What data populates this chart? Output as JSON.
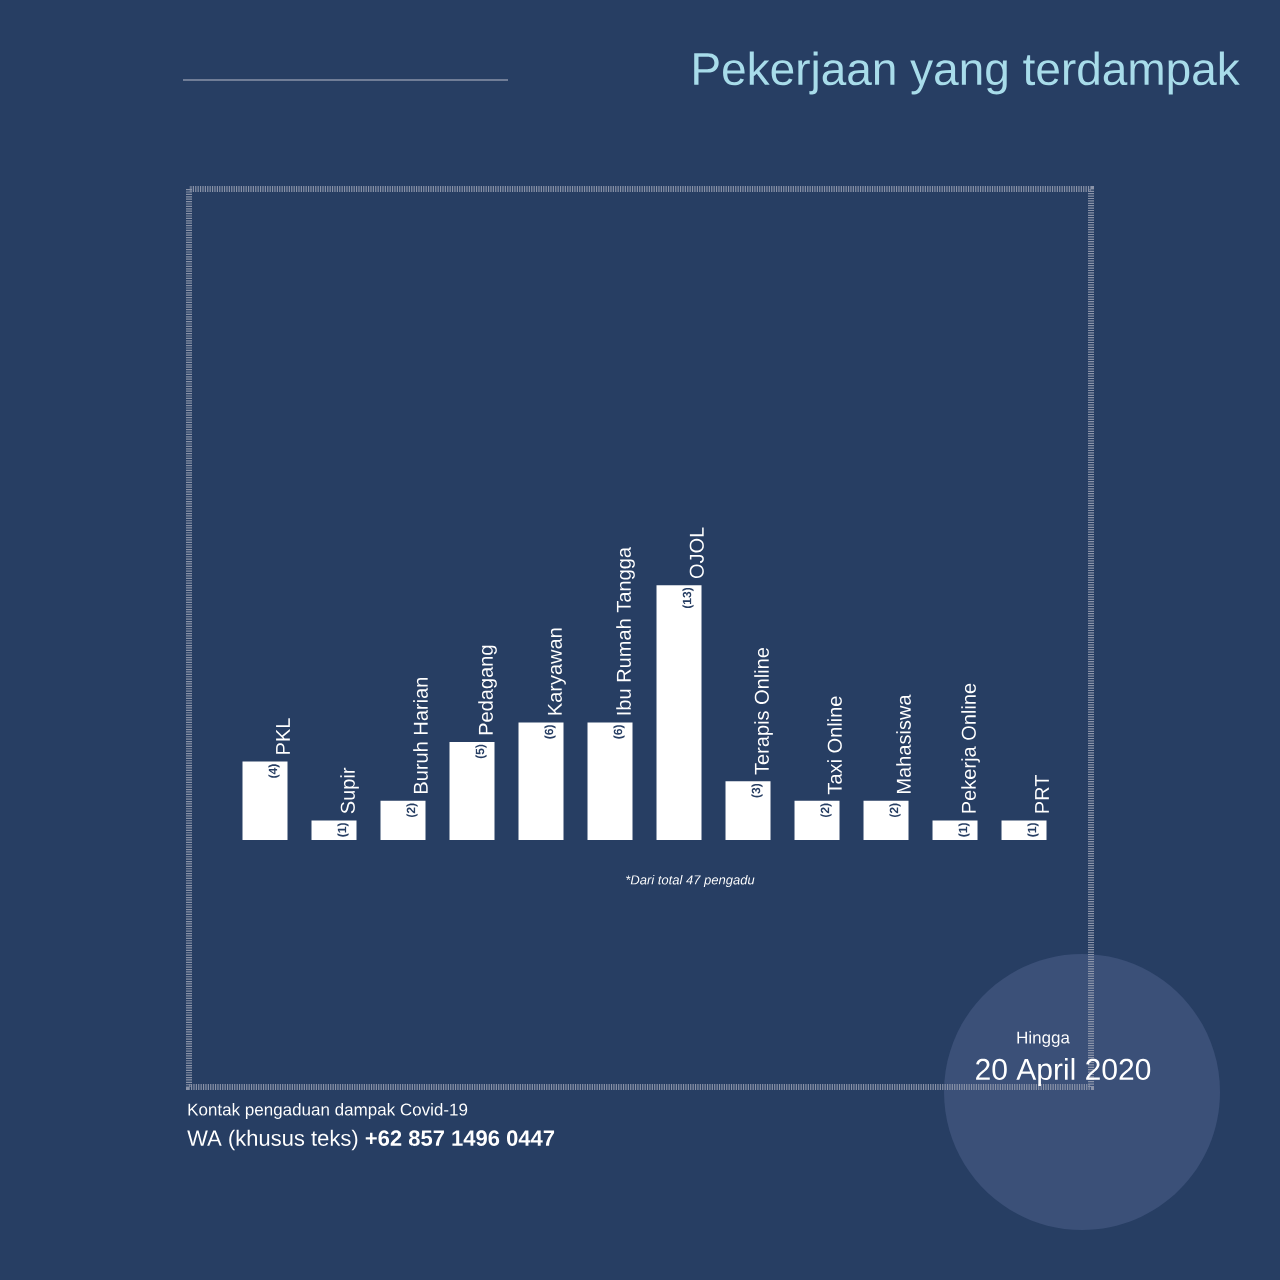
{
  "chart_data": {
    "type": "bar",
    "title": "Pekerjaan yang terdampak",
    "categories": [
      "PKL",
      "Supir",
      "Buruh Harian",
      "Pedagang",
      "Karyawan",
      "Ibu Rumah Tangga",
      "OJOL",
      "Terapis Online",
      "Taxi Online",
      "Mahasiswa",
      "Pekerja Online",
      "PRT"
    ],
    "values": [
      4,
      1,
      2,
      5,
      6,
      6,
      13,
      3,
      2,
      2,
      1,
      1
    ],
    "value_labels": [
      "(4)",
      "(1)",
      "(2)",
      "(5)",
      "(6)",
      "(6)",
      "(13)",
      "(3)",
      "(2)",
      "(2)",
      "(1)",
      "(1)"
    ],
    "color": "#ffffff",
    "annotations": [
      "*Dari total 47 pengadu",
      "Kontak pengaduan dampak Covid-19",
      "WA (khusus teks) **+62 857 1496 0447**",
      "Hingga",
      "20 April 2020"
    ]
  }
}
